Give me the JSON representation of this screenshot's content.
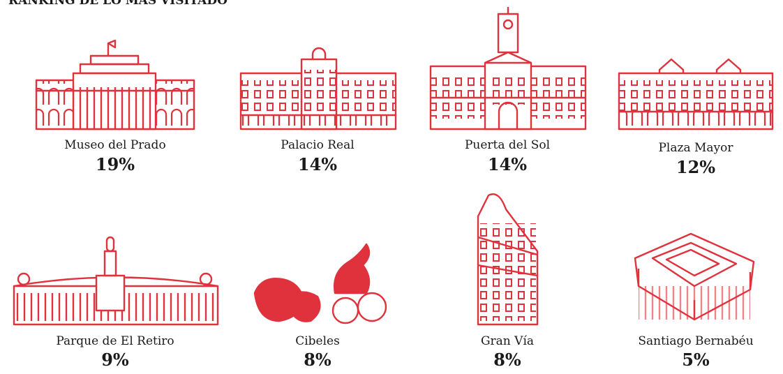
{
  "header": {
    "title": "RANKING DE LO MÁS VISITADO"
  },
  "items": [
    {
      "name": "Museo del Prado",
      "value": "19%"
    },
    {
      "name": "Palacio Real",
      "value": "14%"
    },
    {
      "name": "Puerta del Sol",
      "value": "14%"
    },
    {
      "name": "Plaza Mayor",
      "value": "12%"
    },
    {
      "name": "Parque de El Retiro",
      "value": "9%"
    },
    {
      "name": "Cibeles",
      "value": "8%"
    },
    {
      "name": "Gran Vía",
      "value": "8%"
    },
    {
      "name": "Santiago Bernabéu",
      "value": "5%"
    }
  ]
}
